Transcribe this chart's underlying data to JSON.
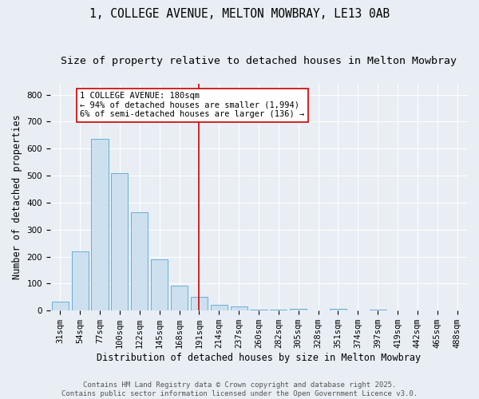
{
  "title": "1, COLLEGE AVENUE, MELTON MOWBRAY, LE13 0AB",
  "subtitle": "Size of property relative to detached houses in Melton Mowbray",
  "xlabel": "Distribution of detached houses by size in Melton Mowbray",
  "ylabel": "Number of detached properties",
  "categories": [
    "31sqm",
    "54sqm",
    "77sqm",
    "100sqm",
    "122sqm",
    "145sqm",
    "168sqm",
    "191sqm",
    "214sqm",
    "237sqm",
    "260sqm",
    "282sqm",
    "305sqm",
    "328sqm",
    "351sqm",
    "374sqm",
    "397sqm",
    "419sqm",
    "442sqm",
    "465sqm",
    "488sqm"
  ],
  "values": [
    33,
    220,
    635,
    510,
    365,
    190,
    93,
    50,
    20,
    15,
    5,
    4,
    8,
    0,
    7,
    0,
    5,
    0,
    0,
    0,
    0
  ],
  "bar_color": "#cce0f0",
  "bar_edge_color": "#6aaed6",
  "annotation_text_line1": "1 COLLEGE AVENUE: 180sqm",
  "annotation_text_line2": "← 94% of detached houses are smaller (1,994)",
  "annotation_text_line3": "6% of semi-detached houses are larger (136) →",
  "annotation_box_color": "#ffffff",
  "annotation_box_edge_color": "#cc0000",
  "red_line_color": "#cc0000",
  "footer_line1": "Contains HM Land Registry data © Crown copyright and database right 2025.",
  "footer_line2": "Contains public sector information licensed under the Open Government Licence v3.0.",
  "title_fontsize": 10.5,
  "subtitle_fontsize": 9.5,
  "ylabel_fontsize": 8.5,
  "xlabel_fontsize": 8.5,
  "tick_fontsize": 7.5,
  "annotation_fontsize": 7.5,
  "footer_fontsize": 6.5,
  "ylim": [
    0,
    840
  ],
  "background_color": "#e8eef4",
  "plot_background_color": "#e8eef4"
}
